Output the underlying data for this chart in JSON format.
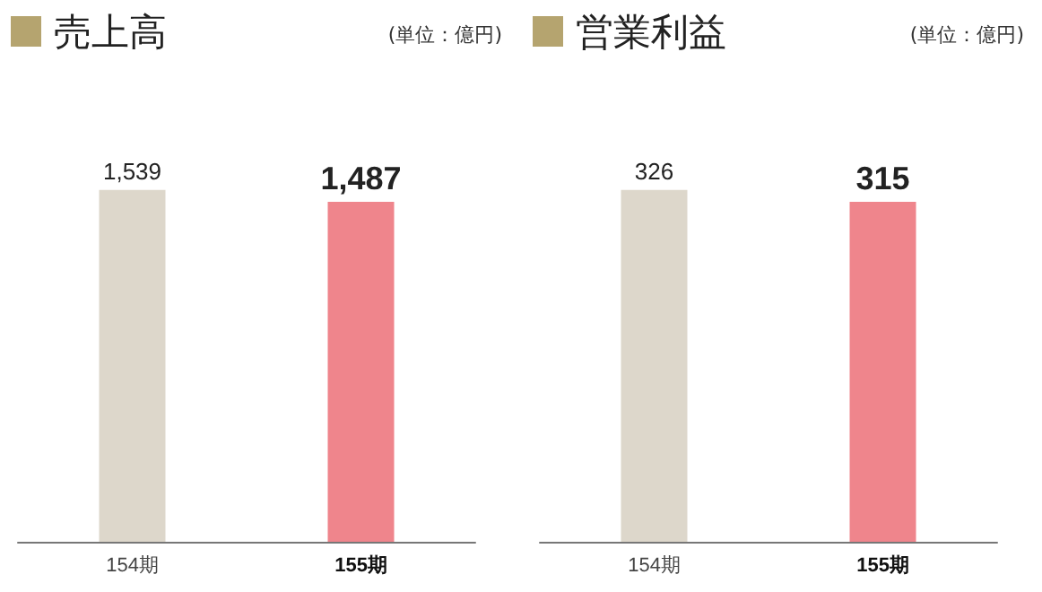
{
  "chart_data": [
    {
      "type": "bar",
      "title": "売上高",
      "annotations": [
        "(単位：億円)"
      ],
      "categories": [
        "154期",
        "155期"
      ],
      "values": [
        1539,
        1487
      ],
      "value_labels": [
        "1,539",
        "1,487"
      ],
      "colors": [
        "#ddd7cb",
        "#ef858c"
      ],
      "tick_labels": "x"
    },
    {
      "type": "bar",
      "title": "営業利益",
      "annotations": [
        "(単位：億円)"
      ],
      "categories": [
        "154期",
        "155期"
      ],
      "values": [
        326,
        315
      ],
      "value_labels": [
        "326",
        "315"
      ],
      "colors": [
        "#ddd7cb",
        "#ef858c"
      ],
      "tick_labels": "x"
    }
  ]
}
